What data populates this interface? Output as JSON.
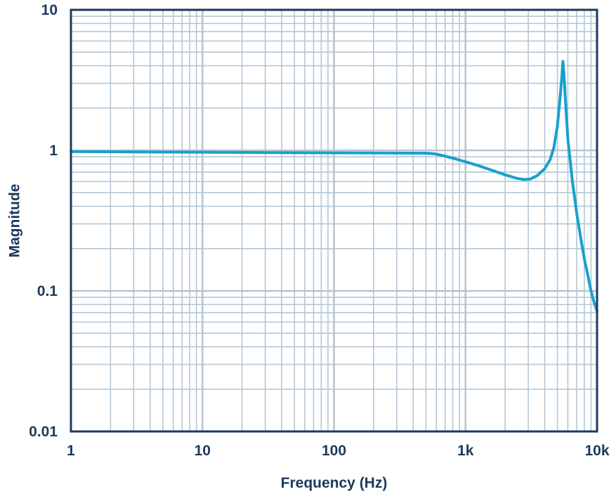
{
  "chart_data": {
    "type": "line",
    "title": "",
    "xlabel": "Frequency (Hz)",
    "ylabel": "Magnitude",
    "x_scale": "log",
    "y_scale": "log",
    "xlim": [
      1,
      10000
    ],
    "ylim": [
      0.01,
      10
    ],
    "grid": true,
    "legend": "none",
    "x_ticks": [
      {
        "value": 1,
        "label": "1"
      },
      {
        "value": 10,
        "label": "10"
      },
      {
        "value": 100,
        "label": "100"
      },
      {
        "value": 1000,
        "label": "1k"
      },
      {
        "value": 10000,
        "label": "10k"
      }
    ],
    "y_ticks": [
      {
        "value": 0.01,
        "label": "0.01"
      },
      {
        "value": 0.1,
        "label": "0.1"
      },
      {
        "value": 1,
        "label": "1"
      },
      {
        "value": 10,
        "label": "10"
      }
    ],
    "colors": {
      "line": "#1aa0cc",
      "grid": "#b4c6d4",
      "frame": "#1b3a5c",
      "text": "#1b3a5c"
    },
    "series": [
      {
        "x": [
          1,
          10,
          100,
          500,
          550,
          600,
          700,
          800,
          1000,
          1300,
          1600,
          2000,
          2500,
          2800,
          3100,
          3500,
          4000,
          4400,
          4700,
          5000,
          5200,
          5400,
          5500,
          5600,
          5800,
          6000,
          6500,
          7000,
          7500,
          8000,
          8500,
          9000,
          9500,
          10000
        ],
        "y": [
          0.98,
          0.97,
          0.96,
          0.955,
          0.95,
          0.94,
          0.91,
          0.88,
          0.83,
          0.77,
          0.72,
          0.67,
          0.63,
          0.62,
          0.625,
          0.66,
          0.74,
          0.86,
          1.05,
          1.5,
          2.2,
          3.3,
          4.3,
          3.5,
          2.0,
          1.2,
          0.6,
          0.36,
          0.24,
          0.17,
          0.13,
          0.1,
          0.083,
          0.072
        ]
      }
    ]
  }
}
